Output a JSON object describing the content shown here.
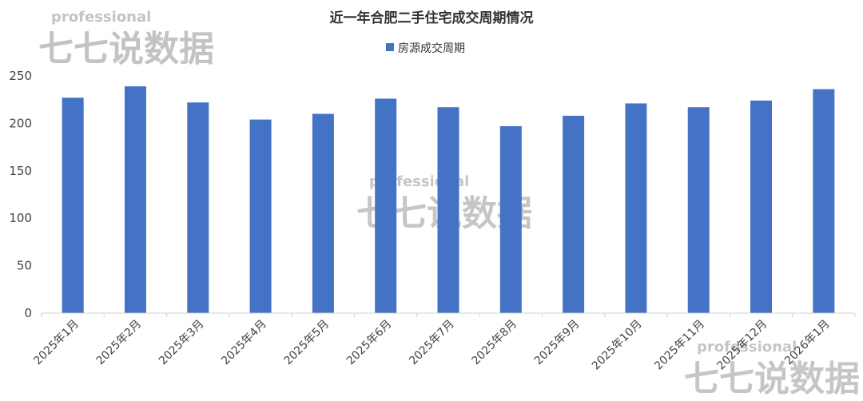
{
  "chart_data": {
    "type": "bar",
    "title": "近一年合肥二手住宅成交周期情况",
    "categories": [
      "2025年1月",
      "2025年2月",
      "2025年3月",
      "2025年4月",
      "2025年5月",
      "2025年6月",
      "2025年7月",
      "2025年8月",
      "2025年9月",
      "2025年10月",
      "2025年11月",
      "2025年12月",
      "2026年1月"
    ],
    "series": [
      {
        "name": "房源成交周期",
        "color": "#4472C4",
        "values": [
          227,
          239,
          222,
          204,
          210,
          226,
          217,
          197,
          208,
          221,
          217,
          224,
          236
        ]
      }
    ],
    "yticks": [
      "0",
      "50",
      "100",
      "150",
      "200",
      "250"
    ],
    "ylim": [
      0,
      250
    ],
    "legend": "top-center",
    "grid": false
  },
  "watermark": {
    "small": "professional",
    "big": "七七说数据"
  }
}
